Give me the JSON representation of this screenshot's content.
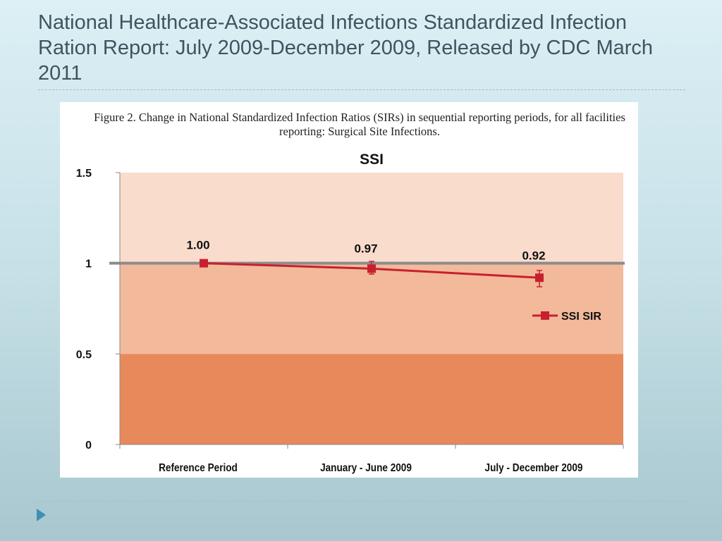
{
  "slide": {
    "title": "National Healthcare-Associated Infections Standardized Infection Ration Report: July 2009-December 2009, Released by CDC March 2011",
    "bullet_icon": "triangle-bullet-icon"
  },
  "chart_data": {
    "type": "line",
    "caption": "Figure 2. Change in National Standardized Infection Ratios (SIRs) in sequential reporting periods, for all facilities reporting: Surgical Site Infections.",
    "title": "SSI",
    "categories": [
      "Reference Period",
      "January - June 2009",
      "July - December 2009"
    ],
    "series": [
      {
        "name": "SSI SIR",
        "values": [
          1.0,
          0.97,
          0.92
        ],
        "labels": [
          "1.00",
          "0.97",
          "0.92"
        ],
        "error_low": [
          1.0,
          0.94,
          0.87
        ],
        "error_high": [
          1.0,
          1.01,
          0.96
        ],
        "color": "#c8202f"
      }
    ],
    "ylim": [
      0,
      1.5
    ],
    "yticks": [
      0,
      0.5,
      1,
      1.5
    ],
    "ytick_labels": [
      "0",
      "0.5",
      "1",
      "1.5"
    ],
    "reference_line": 1,
    "bands": [
      {
        "from": 0,
        "to": 0.5,
        "color": "#e8895b"
      },
      {
        "from": 0.5,
        "to": 1,
        "color": "#f2b99b"
      },
      {
        "from": 1,
        "to": 1.5,
        "color": "#f9dccb"
      }
    ],
    "legend": "right",
    "grid": false
  }
}
